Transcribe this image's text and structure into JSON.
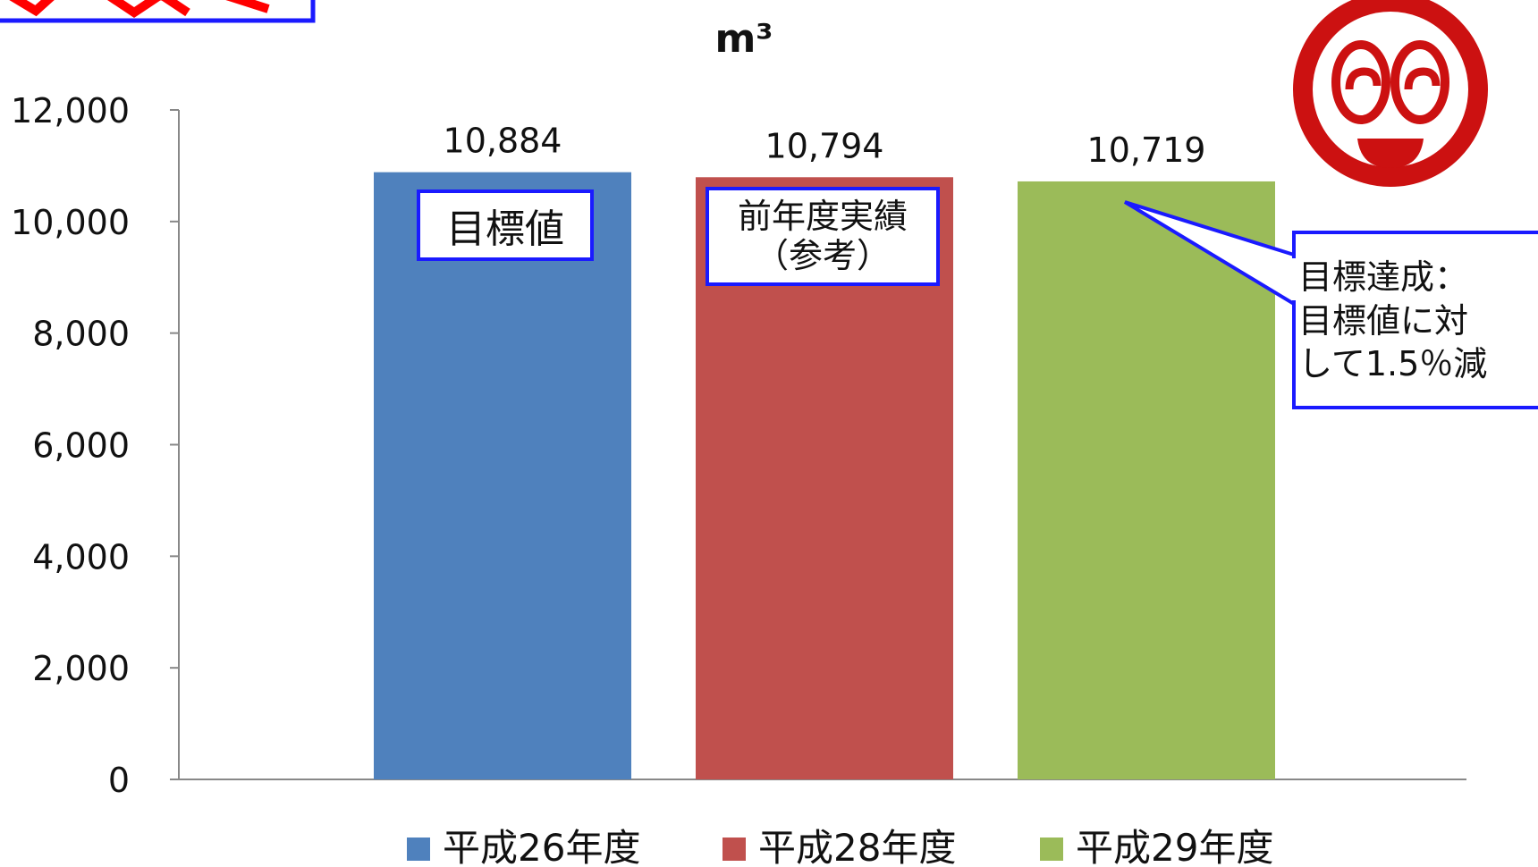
{
  "chart_data": {
    "type": "bar",
    "unit": "m³",
    "categories": [
      "平成26年度",
      "平成28年度",
      "平成29年度"
    ],
    "values": [
      10884,
      10794,
      10719
    ],
    "value_labels": [
      "10,884",
      "10,794",
      "10,719"
    ],
    "colors": [
      "#4f81bd",
      "#c0504d",
      "#9bbb59"
    ],
    "ylim": [
      0,
      12000
    ],
    "yticks": [
      0,
      2000,
      4000,
      6000,
      8000,
      10000,
      12000
    ],
    "ytick_labels": [
      "0",
      "2,000",
      "4,000",
      "6,000",
      "8,000",
      "10,000",
      "12,000"
    ],
    "grid": false,
    "legend_position": "bottom"
  },
  "annotations": {
    "target_badge": "目標値",
    "prev_badge_line1": "前年度実績",
    "prev_badge_line2": "（参考）",
    "callout_line1": "目標達成：",
    "callout_line2": "目標値に対",
    "callout_line3": "して1.5％減"
  },
  "colors": {
    "badge_border": "#1a1aff",
    "logo_red": "#cc1111",
    "banner_red": "#ff0000"
  },
  "icons": {
    "logo": "smiling-face-logo"
  }
}
